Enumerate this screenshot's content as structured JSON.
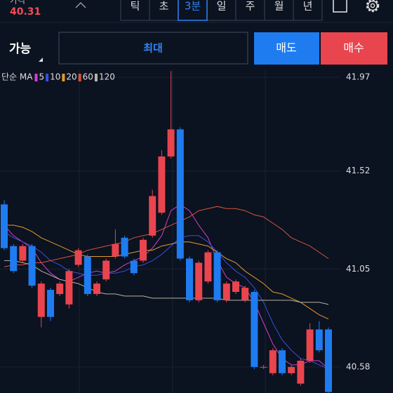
{
  "header": {
    "price_label": "가격",
    "price": 40.31,
    "timeframes": [
      "틱",
      "초",
      "3분",
      "일",
      "주",
      "월",
      "년"
    ],
    "selected_timeframe": 2
  },
  "order": {
    "available": "가능",
    "max": "최대",
    "sell": "매도",
    "buy": "매수"
  },
  "chart_data": {
    "type": "candlestick",
    "legend_title": "단순 MA",
    "open": [
      41.36,
      41.16,
      41.09,
      41.16,
      40.82,
      40.95,
      40.93,
      40.88,
      41.07,
      41.11,
      40.93,
      41.0,
      41.11,
      41.2,
      41.09,
      41.09,
      41.21,
      41.32,
      41.59,
      41.72,
      41.1,
      40.9,
      40.99,
      41.13,
      40.9,
      40.94,
      40.9,
      40.94,
      40.58,
      40.55,
      40.66,
      40.55,
      40.5,
      40.61,
      40.76,
      40.76
    ],
    "high": [
      41.38,
      41.17,
      41.17,
      41.17,
      40.99,
      40.96,
      40.99,
      41.05,
      41.15,
      41.12,
      40.99,
      41.1,
      41.24,
      41.21,
      41.1,
      41.2,
      41.43,
      41.62,
      42.0,
      41.73,
      41.11,
      41.09,
      41.14,
      41.14,
      40.99,
      41.0,
      40.97,
      40.95,
      40.59,
      40.67,
      40.67,
      40.59,
      40.62,
      40.79,
      40.8,
      40.77
    ],
    "low": [
      41.14,
      41.03,
      41.08,
      40.96,
      40.77,
      40.8,
      40.92,
      40.86,
      41.06,
      40.92,
      40.92,
      40.99,
      41.1,
      41.1,
      41.02,
      41.08,
      41.2,
      41.31,
      41.58,
      41.09,
      40.89,
      40.89,
      40.98,
      40.89,
      40.89,
      40.93,
      40.89,
      40.57,
      40.57,
      40.54,
      40.54,
      40.54,
      40.49,
      40.6,
      40.65,
      40.45
    ],
    "close": [
      41.15,
      41.04,
      41.16,
      40.97,
      40.98,
      40.82,
      40.98,
      41.04,
      41.14,
      40.93,
      40.98,
      41.09,
      41.17,
      41.11,
      41.03,
      41.19,
      41.4,
      41.59,
      41.72,
      41.1,
      40.9,
      41.08,
      41.13,
      40.9,
      40.98,
      40.99,
      40.96,
      40.58,
      40.58,
      40.66,
      40.55,
      40.58,
      40.61,
      40.76,
      40.66,
      40.46
    ],
    "up_color": "#e8454f",
    "down_color": "#1e7cf0",
    "series": [
      {
        "name": "5",
        "color": "#d43fd0",
        "values": [
          41.26,
          41.21,
          41.18,
          41.15,
          41.08,
          41.03,
          41.0,
          40.99,
          41.01,
          41.03,
          41.04,
          41.03,
          41.04,
          41.07,
          41.09,
          41.11,
          41.15,
          41.21,
          41.33,
          41.36,
          41.33,
          41.26,
          41.2,
          41.09,
          41.01,
          40.98,
          40.96,
          40.89,
          40.79,
          40.69,
          40.62,
          40.59,
          40.59,
          40.61,
          40.61,
          40.57
        ]
      },
      {
        "name": "10",
        "color": "#3d4fd6",
        "values": [
          41.23,
          41.2,
          41.18,
          41.16,
          41.13,
          41.09,
          41.07,
          41.04,
          41.03,
          41.02,
          41.02,
          41.03,
          41.03,
          41.04,
          41.06,
          41.07,
          41.09,
          41.12,
          41.16,
          41.2,
          41.21,
          41.21,
          41.18,
          41.13,
          41.08,
          41.04,
          41.01,
          40.96,
          40.89,
          40.79,
          40.71,
          40.66,
          40.62,
          40.61,
          40.59,
          40.57
        ]
      },
      {
        "name": "20",
        "color": "#e39a2c",
        "values": [
          41.26,
          41.26,
          41.25,
          41.23,
          41.2,
          41.18,
          41.16,
          41.14,
          41.12,
          41.11,
          41.11,
          41.11,
          41.11,
          41.12,
          41.13,
          41.14,
          41.14,
          41.16,
          41.17,
          41.18,
          41.18,
          41.17,
          41.16,
          41.13,
          41.1,
          41.08,
          41.04,
          41.01,
          40.98,
          40.94,
          40.93,
          40.91,
          40.89,
          40.86,
          40.83,
          40.81
        ]
      },
      {
        "name": "60",
        "color": "#d9533c",
        "values": [
          41.06,
          41.07,
          41.07,
          41.08,
          41.08,
          41.09,
          41.1,
          41.11,
          41.12,
          41.14,
          41.15,
          41.16,
          41.17,
          41.18,
          41.2,
          41.21,
          41.22,
          41.24,
          41.26,
          41.28,
          41.3,
          41.33,
          41.34,
          41.35,
          41.34,
          41.34,
          41.33,
          41.31,
          41.3,
          41.27,
          41.24,
          41.2,
          41.18,
          41.16,
          41.13,
          41.1
        ]
      },
      {
        "name": "120",
        "color": "#b8b4a0",
        "values": [
          41.09,
          41.09,
          41.08,
          41.07,
          41.04,
          41.02,
          41.0,
          40.99,
          40.98,
          40.96,
          40.94,
          40.93,
          40.93,
          40.92,
          40.92,
          40.92,
          40.91,
          40.91,
          40.91,
          40.91,
          40.91,
          40.91,
          40.91,
          40.91,
          40.9,
          40.9,
          40.9,
          40.9,
          40.9,
          40.9,
          40.9,
          40.9,
          40.89,
          40.89,
          40.89,
          40.88
        ]
      }
    ],
    "ylim": [
      40.455,
      42.004
    ],
    "yticks": [
      41.97,
      41.52,
      41.05,
      40.58
    ]
  }
}
